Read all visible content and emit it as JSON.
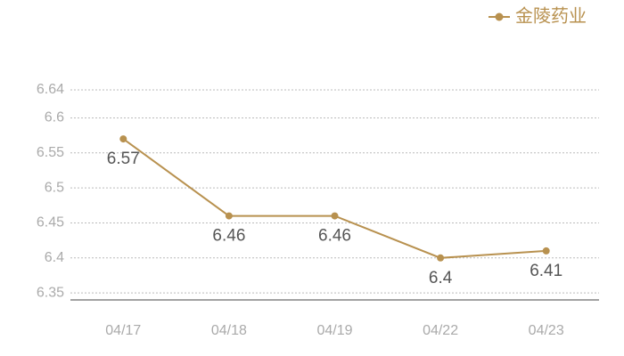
{
  "chart_data": {
    "type": "line",
    "categories": [
      "04/17",
      "04/18",
      "04/19",
      "04/22",
      "04/23"
    ],
    "series": [
      {
        "name": "金陵药业",
        "color": "#b8914f",
        "values": [
          6.57,
          6.46,
          6.46,
          6.4,
          6.41
        ]
      }
    ],
    "ylim": [
      6.34,
      6.64
    ],
    "yticks": [
      6.35,
      6.4,
      6.45,
      6.5,
      6.55,
      6.6,
      6.64
    ],
    "grid": true,
    "legend": "top-right"
  }
}
